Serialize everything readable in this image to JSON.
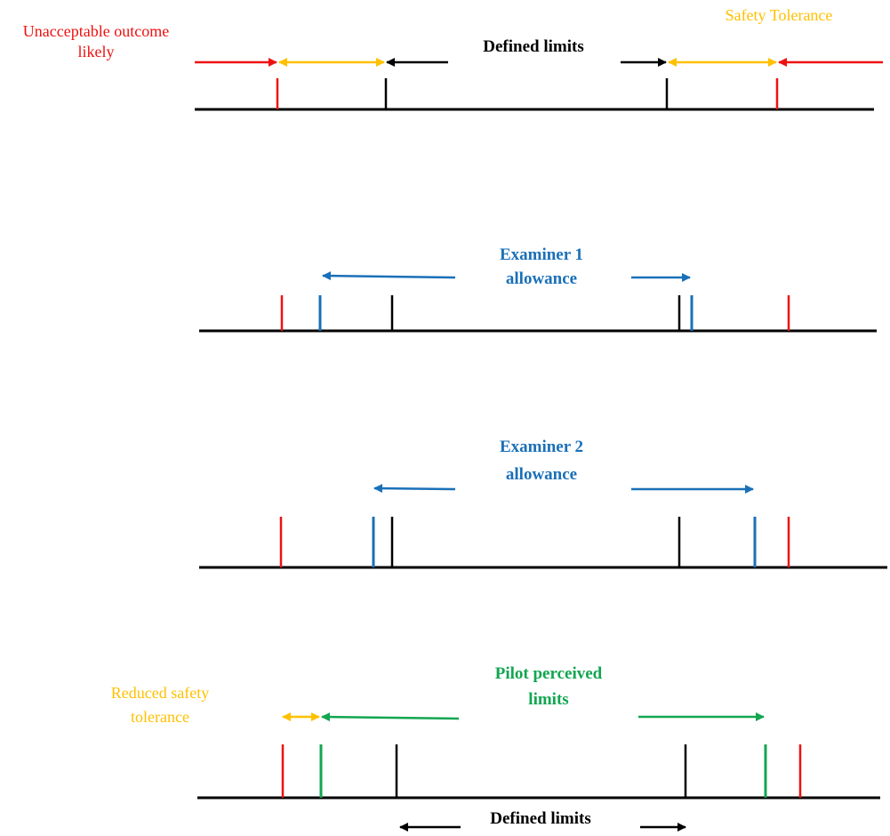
{
  "colors": {
    "red": "#ee1111",
    "amber": "#ffc000",
    "black": "#000000",
    "blue": "#1a70b8",
    "green": "#12a650"
  },
  "panel1": {
    "unacceptable_line1": "Unacceptable outcome",
    "unacceptable_line2": "likely",
    "safety_tolerance": "Safety Tolerance",
    "defined_limits": "Defined limits"
  },
  "panel2": {
    "examiner_line1": "Examiner 1",
    "examiner_line2": "allowance"
  },
  "panel3": {
    "examiner_line1": "Examiner 2",
    "examiner_line2": "allowance"
  },
  "panel4": {
    "reduced_line1": "Reduced safety",
    "reduced_line2": "tolerance",
    "pilot_line1": "Pilot perceived",
    "pilot_line2": "limits",
    "defined_limits": "Defined limits"
  }
}
